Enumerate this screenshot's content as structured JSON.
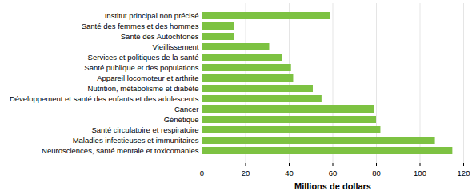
{
  "chart_data": {
    "type": "bar",
    "orientation": "horizontal",
    "categories": [
      "Institut principal non précisé",
      "Santé des femmes et des hommes",
      "Santé des Autochtones",
      "Vieillissement",
      "Services et politiques de la santé",
      "Santé publique et des populations",
      "Appareil locomoteur et arthrite",
      "Nutrition, métabolisme et diabète",
      "Développement et santé des enfants et des adolescents",
      "Cancer",
      "Génétique",
      "Santé circulatoire et respiratoire",
      "Maladies infectieuses et immunitaires",
      "Neurosciences, santé mentale et toxicomanies"
    ],
    "values": [
      59,
      15,
      15,
      31,
      37,
      41,
      42,
      51,
      55,
      79,
      80,
      82,
      107,
      115
    ],
    "color": "#7dc242",
    "x_label": "Millions de dollars",
    "xlim": [
      0,
      120
    ],
    "xticks": [
      0,
      20,
      40,
      60,
      80,
      100,
      120
    ],
    "grid": true
  }
}
